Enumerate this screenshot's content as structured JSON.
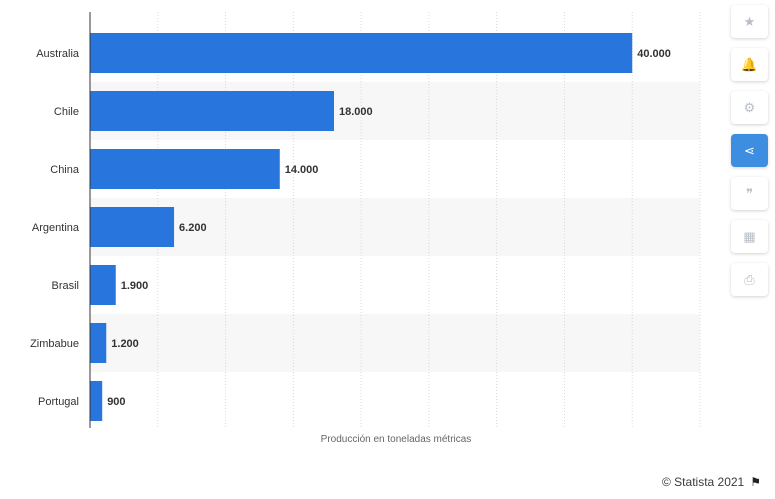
{
  "chart_data": {
    "type": "bar",
    "orientation": "horizontal",
    "categories": [
      "Australia",
      "Chile",
      "China",
      "Argentina",
      "Brasil",
      "Zimbabue",
      "Portugal"
    ],
    "values": [
      40000,
      18000,
      14000,
      6200,
      1900,
      1200,
      900
    ],
    "value_labels": [
      "40.000",
      "18.000",
      "14.000",
      "6.200",
      "1.900",
      "1.200",
      "900"
    ],
    "xlabel": "Producción en toneladas métricas",
    "xlim": [
      0,
      45000
    ],
    "grid": true,
    "bar_color": "#2876dd",
    "stripe_color": "#f7f7f7"
  },
  "sidebar": {
    "buttons": [
      {
        "name": "favorite-button",
        "icon": "star-icon",
        "glyph": "★"
      },
      {
        "name": "notification-button",
        "icon": "bell-icon",
        "glyph": "🔔"
      },
      {
        "name": "settings-button",
        "icon": "gear-icon",
        "glyph": "⚙"
      },
      {
        "name": "share-button",
        "icon": "share-icon",
        "glyph": "⋖"
      },
      {
        "name": "cite-button",
        "icon": "quote-icon",
        "glyph": "❞"
      },
      {
        "name": "language-button",
        "icon": "uk-flag-icon",
        "glyph": "▦"
      },
      {
        "name": "print-button",
        "icon": "printer-icon",
        "glyph": "⎙"
      }
    ],
    "active_color": "#3d8ee0"
  },
  "footer": {
    "credit": "© Statista 2021",
    "flag_icon": "flag-icon"
  }
}
